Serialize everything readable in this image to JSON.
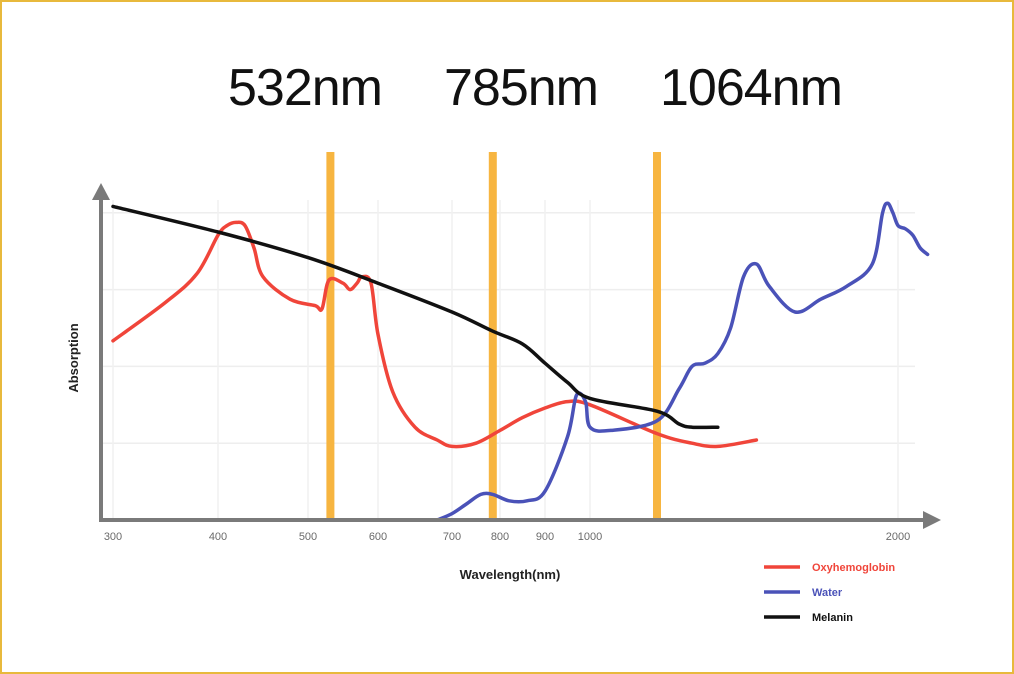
{
  "laser_labels": [
    "532nm",
    "785nm",
    "1064nm"
  ],
  "chart_data": {
    "type": "line",
    "xlabel": "Wavelength(nm)",
    "ylabel": "Absorption",
    "x_ticks": [
      "300",
      "400",
      "500",
      "600",
      "700",
      "800",
      "900",
      "1000",
      "2000"
    ],
    "x_tick_values": [
      300,
      400,
      500,
      600,
      700,
      800,
      900,
      1000,
      2000
    ],
    "x_scale": "non-linear (compressed between 1000 and 2000 nm)",
    "y_ticks": [],
    "grid": true,
    "legend_position": "bottom-right",
    "laser_lines_nm": [
      532,
      785,
      1064
    ],
    "laser_line_color": "#f7b540",
    "series": [
      {
        "name": "Oxyhemoglobin",
        "color": "#f0453a",
        "x": [
          300,
          350,
          380,
          400,
          410,
          420,
          430,
          440,
          450,
          480,
          510,
          520,
          530,
          550,
          560,
          570,
          577,
          590,
          600,
          620,
          650,
          680,
          700,
          750,
          800,
          850,
          900,
          950,
          1000,
          1064,
          1200,
          1300,
          1450
        ],
        "y": [
          0.56,
          0.68,
          0.77,
          0.89,
          0.92,
          0.93,
          0.92,
          0.85,
          0.76,
          0.69,
          0.67,
          0.66,
          0.75,
          0.74,
          0.72,
          0.74,
          0.76,
          0.74,
          0.58,
          0.4,
          0.29,
          0.25,
          0.23,
          0.24,
          0.28,
          0.32,
          0.35,
          0.37,
          0.36,
          0.27,
          0.24,
          0.23,
          0.25
        ]
      },
      {
        "name": "Water",
        "color": "#4a52b8",
        "x": [
          680,
          700,
          730,
          760,
          785,
          820,
          860,
          900,
          950,
          970,
          990,
          1000,
          1020,
          1064,
          1150,
          1200,
          1250,
          1300,
          1350,
          1400,
          1450,
          1500,
          1600,
          1700,
          1800,
          1900,
          1940,
          1960,
          1980,
          2000,
          2020,
          2040,
          2060,
          2080
        ],
        "y": [
          0.0,
          0.02,
          0.05,
          0.08,
          0.08,
          0.06,
          0.06,
          0.09,
          0.26,
          0.39,
          0.37,
          0.29,
          0.28,
          0.31,
          0.41,
          0.48,
          0.49,
          0.52,
          0.6,
          0.76,
          0.8,
          0.73,
          0.65,
          0.69,
          0.73,
          0.8,
          0.96,
          0.99,
          0.96,
          0.92,
          0.91,
          0.89,
          0.85,
          0.83
        ]
      },
      {
        "name": "Melanin",
        "color": "#111111",
        "x": [
          300,
          400,
          500,
          600,
          700,
          785,
          850,
          900,
          950,
          1000,
          1064,
          1150,
          1200,
          1300
        ],
        "y": [
          0.98,
          0.9,
          0.82,
          0.74,
          0.65,
          0.59,
          0.55,
          0.49,
          0.43,
          0.38,
          0.34,
          0.3,
          0.29,
          0.29
        ]
      }
    ]
  }
}
